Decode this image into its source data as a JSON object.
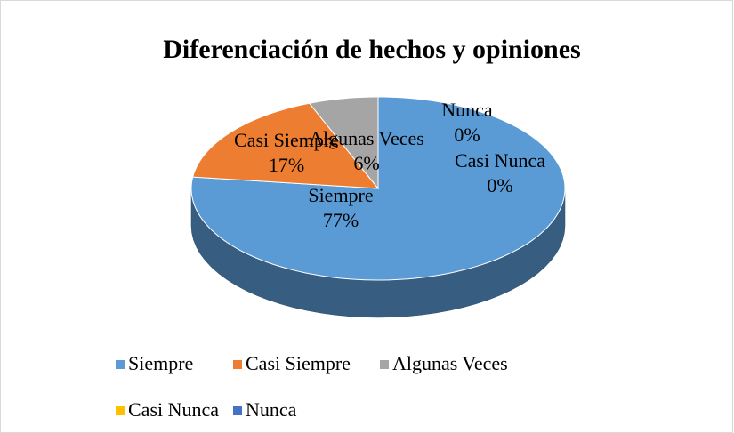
{
  "chart_data": {
    "type": "pie",
    "title": "Diferenciación de hechos y opiniones",
    "categories": [
      "Siempre",
      "Casi Siempre",
      "Algunas Veces",
      "Casi Nunca",
      "Nunca"
    ],
    "values": [
      77,
      17,
      6,
      0,
      0
    ],
    "value_labels": [
      "77%",
      "17%",
      "6%",
      "0%",
      "0%"
    ],
    "colors": [
      "#5b9bd5",
      "#ed7d31",
      "#a5a5a5",
      "#ffc000",
      "#4472c4"
    ],
    "legend": "bottom",
    "three_d": true
  }
}
